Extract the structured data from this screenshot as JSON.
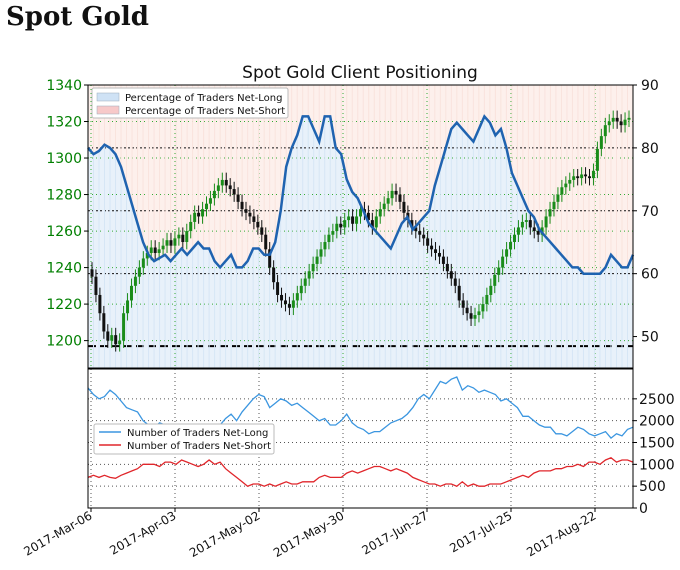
{
  "page": {
    "title": "Spot Gold"
  },
  "chart_data": {
    "type": "line",
    "title": "Spot Gold Client Positioning",
    "x_tick_labels": [
      "2017-Mar-06",
      "2017-Apr-03",
      "2017-May-02",
      "2017-May-30",
      "2017-Jun-27",
      "2017-Jul-25",
      "2017-Aug-22"
    ],
    "price_axis": {
      "ylim": [
        1185,
        1340
      ],
      "ticks": [
        1200,
        1220,
        1240,
        1260,
        1280,
        1300,
        1320,
        1340
      ],
      "color": "#007f00"
    },
    "pct_axis": {
      "ylim": [
        45,
        90
      ],
      "ticks": [
        50,
        60,
        70,
        80,
        90
      ]
    },
    "count_axis": {
      "ylim": [
        0,
        3000
      ],
      "ticks": [
        0,
        500,
        1000,
        1500,
        2000,
        2500
      ]
    },
    "legend_top": [
      {
        "label": "Percentage of Traders Net-Long",
        "color": "#cfe2f5"
      },
      {
        "label": "Percentage of Traders Net-Short",
        "color": "#f7c9c9"
      }
    ],
    "legend_bottom": [
      {
        "label": "Number of Traders Net-Long",
        "color": "#3b96e0"
      },
      {
        "label": "Number of Traders Net-Short",
        "color": "#e0262b"
      }
    ],
    "reference_line": 1197,
    "series": [
      {
        "name": "Percentage of Traders Net-Long",
        "axis": "pct",
        "values": [
          80,
          79,
          79.5,
          80.5,
          80,
          79,
          77,
          74,
          71,
          68,
          65,
          63,
          62,
          62.5,
          63,
          62,
          63,
          64,
          63,
          64,
          65,
          64,
          64,
          62,
          61,
          62,
          63,
          61,
          61,
          62,
          64,
          64,
          63,
          63,
          65,
          70,
          77,
          80,
          82,
          85,
          85,
          83,
          81,
          85,
          85,
          80,
          79,
          75,
          73,
          72,
          70,
          68,
          67,
          66,
          65,
          64,
          66,
          68,
          69,
          67,
          68,
          69,
          70,
          74,
          77,
          80,
          83,
          84,
          83,
          82,
          81,
          83,
          85,
          84,
          82,
          83,
          80,
          76,
          74,
          72,
          70,
          69,
          67,
          66,
          65,
          64,
          63,
          62,
          61,
          61,
          60,
          60,
          60,
          60,
          61,
          63,
          62,
          61,
          61,
          63
        ]
      },
      {
        "name": "Number of Traders Net-Long",
        "axis": "count",
        "values": [
          2750,
          2600,
          2500,
          2550,
          2700,
          2600,
          2450,
          2300,
          2250,
          2200,
          2000,
          1900,
          1850,
          1950,
          1900,
          1800,
          1700,
          1650,
          1700,
          1800,
          1900,
          1800,
          1750,
          1850,
          1900,
          2050,
          2150,
          2000,
          2200,
          2350,
          2500,
          2600,
          2550,
          2300,
          2400,
          2500,
          2450,
          2350,
          2400,
          2300,
          2200,
          2100,
          2000,
          2050,
          1900,
          1900,
          2000,
          2150,
          1950,
          1850,
          1800,
          1700,
          1750,
          1750,
          1850,
          1950,
          2000,
          2050,
          2150,
          2300,
          2500,
          2600,
          2500,
          2700,
          2900,
          2850,
          2950,
          3000,
          2700,
          2800,
          2750,
          2650,
          2700,
          2650,
          2600,
          2450,
          2500,
          2400,
          2300,
          2100,
          2100,
          2000,
          1900,
          1850,
          1850,
          1700,
          1700,
          1650,
          1750,
          1850,
          1800,
          1700,
          1650,
          1700,
          1750,
          1600,
          1700,
          1650,
          1800,
          1850
        ]
      },
      {
        "name": "Number of Traders Net-Short",
        "axis": "count",
        "values": [
          700,
          750,
          700,
          750,
          700,
          680,
          750,
          800,
          850,
          900,
          1000,
          1000,
          1000,
          950,
          1050,
          1050,
          1000,
          1100,
          1050,
          1000,
          950,
          1000,
          1100,
          1000,
          1050,
          900,
          800,
          700,
          600,
          500,
          550,
          550,
          500,
          550,
          500,
          550,
          600,
          550,
          550,
          600,
          600,
          600,
          700,
          750,
          700,
          700,
          700,
          800,
          850,
          800,
          850,
          900,
          950,
          950,
          900,
          850,
          900,
          850,
          800,
          700,
          650,
          600,
          550,
          550,
          500,
          550,
          550,
          500,
          600,
          500,
          550,
          500,
          500,
          550,
          550,
          550,
          600,
          650,
          700,
          750,
          700,
          800,
          850,
          850,
          850,
          900,
          900,
          950,
          950,
          1000,
          950,
          1050,
          1050,
          1000,
          1100,
          1150,
          1050,
          1100,
          1100,
          1050
        ]
      }
    ],
    "price_close": [
      1235,
      1225,
      1215,
      1205,
      1200,
      1203,
      1198,
      1200,
      1215,
      1222,
      1230,
      1235,
      1240,
      1245,
      1248,
      1251,
      1248,
      1250,
      1252,
      1255,
      1252,
      1256,
      1258,
      1254,
      1260,
      1265,
      1270,
      1268,
      1272,
      1275,
      1278,
      1282,
      1285,
      1288,
      1285,
      1283,
      1280,
      1276,
      1272,
      1270,
      1268,
      1265,
      1262,
      1258,
      1250,
      1240,
      1232,
      1225,
      1222,
      1220,
      1218,
      1222,
      1226,
      1230,
      1234,
      1238,
      1242,
      1246,
      1250,
      1254,
      1258,
      1260,
      1264,
      1262,
      1266,
      1268,
      1264,
      1268,
      1272,
      1270,
      1266,
      1262,
      1268,
      1272,
      1275,
      1278,
      1282,
      1280,
      1276,
      1270,
      1266,
      1262,
      1260,
      1258,
      1256,
      1252,
      1250,
      1248,
      1246,
      1242,
      1238,
      1234,
      1230,
      1222,
      1218,
      1215,
      1212,
      1214,
      1216,
      1220,
      1225,
      1230,
      1236,
      1240,
      1246,
      1250,
      1254,
      1258,
      1262,
      1265,
      1266,
      1262,
      1260,
      1258,
      1262,
      1268,
      1272,
      1276,
      1280,
      1284,
      1286,
      1288,
      1290,
      1289,
      1291,
      1290,
      1289,
      1293,
      1305,
      1312,
      1318,
      1320,
      1322,
      1320,
      1318,
      1321,
      1322
    ]
  }
}
